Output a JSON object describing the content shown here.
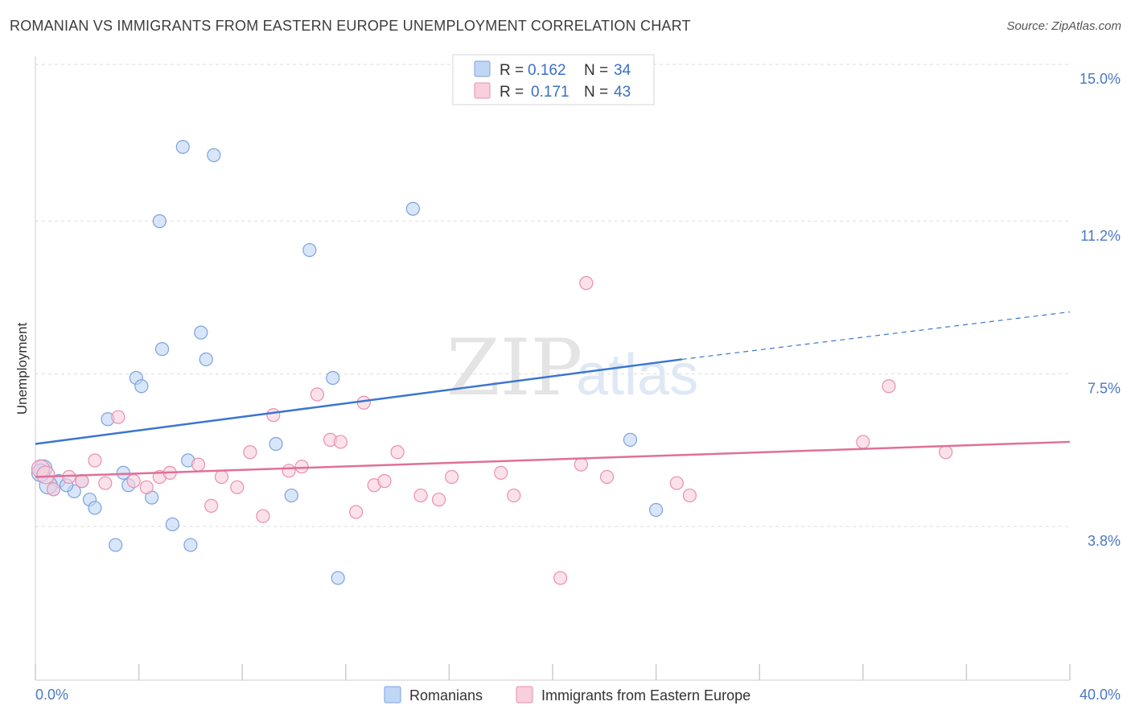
{
  "header": {
    "title": "ROMANIAN VS IMMIGRANTS FROM EASTERN EUROPE UNEMPLOYMENT CORRELATION CHART",
    "source": "Source: ZipAtlas.com"
  },
  "watermark": {
    "zip": "ZIP",
    "atlas": "atlas"
  },
  "legend": {
    "r_label": "R =",
    "n_label": "N =",
    "rows": [
      {
        "r": "0.162",
        "n": "34",
        "color": "#a9c6ef"
      },
      {
        "r": "0.171",
        "n": "43",
        "color": "#f5b8cb"
      }
    ]
  },
  "bottom_legend": [
    {
      "label": "Romanians",
      "color": "#a9c6ef"
    },
    {
      "label": "Immigrants from Eastern Europe",
      "color": "#f5b8cb"
    }
  ],
  "chart_data": {
    "type": "scatter",
    "title": "ROMANIAN VS IMMIGRANTS FROM EASTERN EUROPE UNEMPLOYMENT CORRELATION CHART",
    "xlabel": "",
    "ylabel": "Unemployment",
    "xlim": [
      0,
      40
    ],
    "ylim": [
      0,
      15.5
    ],
    "x_tick_labels": [
      "0.0%",
      "40.0%"
    ],
    "y_ticks": [
      {
        "value": 3.8,
        "label": "3.8%"
      },
      {
        "value": 7.5,
        "label": "7.5%"
      },
      {
        "value": 11.2,
        "label": "11.2%"
      },
      {
        "value": 15.0,
        "label": "15.0%"
      }
    ],
    "grid": true,
    "legend_position": "top-center",
    "series": [
      {
        "name": "Romanians",
        "color": "#7aa3e0",
        "fill": "#c0d6f5",
        "R": 0.162,
        "N": 34,
        "trend": {
          "x0": 0,
          "y0": 5.8,
          "x1": 25,
          "y1": 7.85,
          "dash_to_x": 40,
          "dash_to_y": 9.0
        },
        "points": [
          [
            0.3,
            5.2
          ],
          [
            0.7,
            4.7
          ],
          [
            0.9,
            4.9
          ],
          [
            1.5,
            4.65
          ],
          [
            1.8,
            4.9
          ],
          [
            2.1,
            4.45
          ],
          [
            2.3,
            4.25
          ],
          [
            2.8,
            6.4
          ],
          [
            3.1,
            3.35
          ],
          [
            3.4,
            5.1
          ],
          [
            3.6,
            4.8
          ],
          [
            3.9,
            7.4
          ],
          [
            4.1,
            7.2
          ],
          [
            4.5,
            4.5
          ],
          [
            4.8,
            11.2
          ],
          [
            4.9,
            8.1
          ],
          [
            5.3,
            3.85
          ],
          [
            5.7,
            13.0
          ],
          [
            5.9,
            5.4
          ],
          [
            6.0,
            3.35
          ],
          [
            6.4,
            8.5
          ],
          [
            6.6,
            7.85
          ],
          [
            6.9,
            12.8
          ],
          [
            9.3,
            5.8
          ],
          [
            9.9,
            4.55
          ],
          [
            10.6,
            10.5
          ],
          [
            11.5,
            7.4
          ],
          [
            11.7,
            2.55
          ],
          [
            14.6,
            11.5
          ],
          [
            23.0,
            5.9
          ],
          [
            24.0,
            4.2
          ],
          [
            0.5,
            4.8
          ],
          [
            0.2,
            5.1
          ],
          [
            1.2,
            4.8
          ]
        ]
      },
      {
        "name": "Immigrants from Eastern Europe",
        "color": "#ea8fad",
        "fill": "#f8cfdc",
        "R": 0.171,
        "N": 43,
        "trend": {
          "x0": 0,
          "y0": 5.0,
          "x1": 40,
          "y1": 5.85
        },
        "points": [
          [
            0.2,
            5.2
          ],
          [
            0.7,
            4.7
          ],
          [
            1.3,
            5.0
          ],
          [
            1.8,
            4.9
          ],
          [
            2.3,
            5.4
          ],
          [
            2.7,
            4.85
          ],
          [
            3.2,
            6.45
          ],
          [
            3.8,
            4.9
          ],
          [
            4.3,
            4.75
          ],
          [
            4.8,
            5.0
          ],
          [
            5.2,
            5.1
          ],
          [
            6.3,
            5.3
          ],
          [
            6.8,
            4.3
          ],
          [
            7.2,
            5.0
          ],
          [
            7.8,
            4.75
          ],
          [
            8.3,
            5.6
          ],
          [
            8.8,
            4.05
          ],
          [
            9.2,
            6.5
          ],
          [
            9.8,
            5.15
          ],
          [
            10.3,
            5.25
          ],
          [
            10.9,
            7.0
          ],
          [
            11.4,
            5.9
          ],
          [
            11.8,
            5.85
          ],
          [
            12.4,
            4.15
          ],
          [
            13.1,
            4.8
          ],
          [
            13.5,
            4.9
          ],
          [
            14.0,
            5.6
          ],
          [
            14.9,
            4.55
          ],
          [
            15.6,
            4.45
          ],
          [
            16.1,
            5.0
          ],
          [
            18.0,
            5.1
          ],
          [
            18.5,
            4.55
          ],
          [
            20.3,
            2.55
          ],
          [
            21.1,
            5.3
          ],
          [
            21.3,
            9.7
          ],
          [
            22.1,
            5.0
          ],
          [
            24.8,
            4.85
          ],
          [
            25.3,
            4.55
          ],
          [
            32.0,
            5.85
          ],
          [
            33.0,
            7.2
          ],
          [
            35.2,
            5.6
          ],
          [
            12.7,
            6.8
          ],
          [
            0.4,
            5.05
          ]
        ]
      }
    ]
  }
}
